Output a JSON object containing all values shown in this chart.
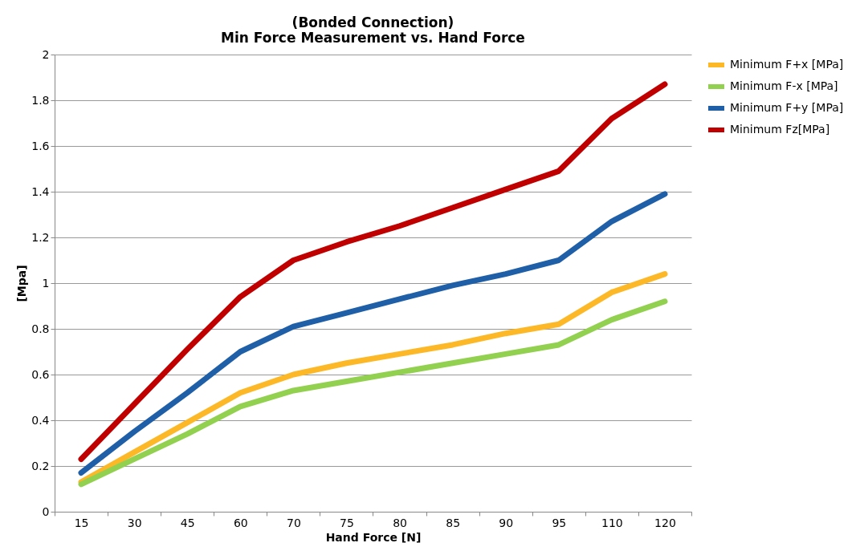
{
  "chart_data": {
    "type": "line",
    "title": "(Bonded Connection)\nMin Force Measurement vs. Hand Force",
    "xlabel": "Hand Force [N]",
    "ylabel": "[Mpa]",
    "categories": [
      "15",
      "30",
      "45",
      "60",
      "70",
      "75",
      "80",
      "85",
      "90",
      "95",
      "110",
      "120"
    ],
    "series": [
      {
        "name": "Minimum F+x [MPa]",
        "color": "#fdb827",
        "values": [
          0.13,
          0.26,
          0.39,
          0.52,
          0.6,
          0.65,
          0.69,
          0.73,
          0.78,
          0.82,
          0.96,
          1.04
        ]
      },
      {
        "name": "Minimum F-x [MPa]",
        "color": "#92d050",
        "values": [
          0.12,
          0.23,
          0.34,
          0.46,
          0.53,
          0.57,
          0.61,
          0.65,
          0.69,
          0.73,
          0.84,
          0.92
        ]
      },
      {
        "name": "Minimum F+y [MPa]",
        "color": "#1f5fa8",
        "values": [
          0.17,
          0.35,
          0.52,
          0.7,
          0.81,
          0.87,
          0.93,
          0.99,
          1.04,
          1.1,
          1.27,
          1.39
        ]
      },
      {
        "name": "Minimum Fz[MPa]",
        "color": "#c00000",
        "values": [
          0.23,
          0.47,
          0.71,
          0.94,
          1.1,
          1.18,
          1.25,
          1.33,
          1.41,
          1.49,
          1.72,
          1.87
        ]
      }
    ],
    "ylim": [
      0,
      2
    ],
    "yticks": [
      0,
      0.2,
      0.4,
      0.6,
      0.8,
      1,
      1.2,
      1.4,
      1.6,
      1.8,
      2
    ],
    "grid": "y",
    "legend": "right",
    "marker": "none",
    "line_style": "solid"
  }
}
